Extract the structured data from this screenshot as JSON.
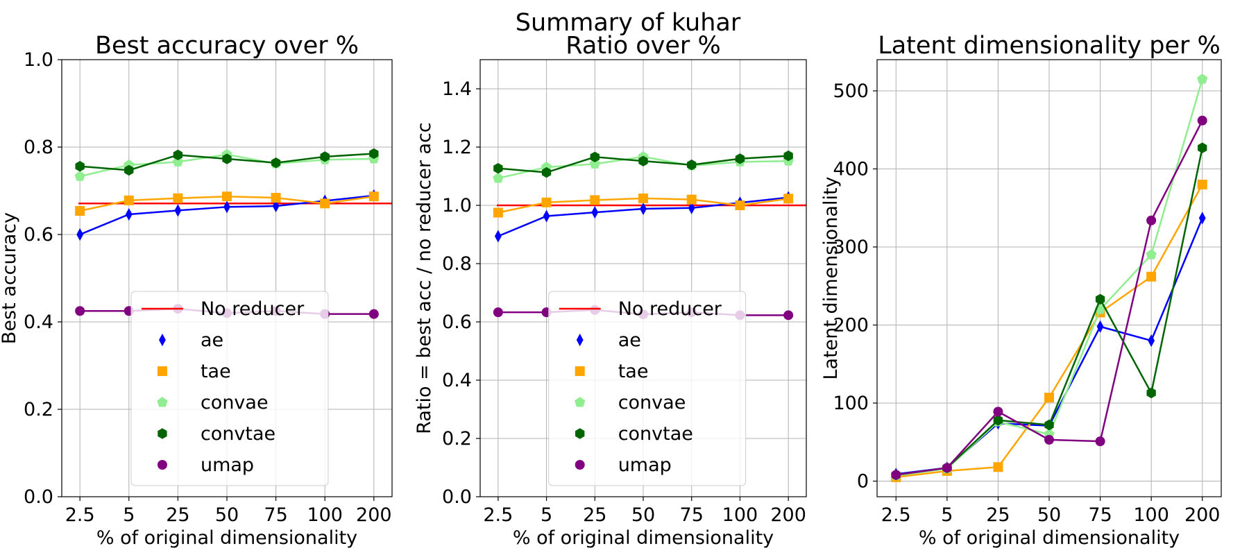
{
  "suptitle": "Summary of kuhar",
  "colors": {
    "No reducer": "#ff0000",
    "ae": "#0000ff",
    "tae": "#ffa500",
    "convae": "#90ee90",
    "convtae": "#006400",
    "umap": "#800080"
  },
  "chart_data": [
    {
      "type": "line",
      "title": "Best accuracy over %",
      "xlabel": "% of original dimensionality",
      "ylabel": "Best accuracy",
      "categories": [
        "2.5",
        "5",
        "25",
        "50",
        "75",
        "100",
        "200"
      ],
      "ylim": [
        0,
        1.0
      ],
      "yticks": [
        0.0,
        0.2,
        0.4,
        0.6,
        0.8,
        1.0
      ],
      "ytick_labels": [
        "0.0",
        "0.2",
        "0.4",
        "0.6",
        "0.8",
        "1.0"
      ],
      "grid": true,
      "legend": "lower-center",
      "baseline": {
        "name": "No reducer",
        "value": 0.671
      },
      "series": [
        {
          "name": "ae",
          "marker": "diamond",
          "values": [
            0.6,
            0.646,
            0.655,
            0.663,
            0.665,
            0.677,
            0.689
          ]
        },
        {
          "name": "tae",
          "marker": "square",
          "values": [
            0.654,
            0.678,
            0.683,
            0.687,
            0.684,
            0.671,
            0.687
          ]
        },
        {
          "name": "convae",
          "marker": "pentagon",
          "values": [
            0.733,
            0.759,
            0.766,
            0.783,
            0.762,
            0.771,
            0.773
          ]
        },
        {
          "name": "convtae",
          "marker": "hexagon",
          "values": [
            0.756,
            0.747,
            0.782,
            0.773,
            0.764,
            0.778,
            0.785
          ]
        },
        {
          "name": "umap",
          "marker": "circle",
          "values": [
            0.425,
            0.425,
            0.43,
            0.42,
            0.425,
            0.418,
            0.418
          ]
        }
      ]
    },
    {
      "type": "line",
      "title": "Ratio over %",
      "xlabel": "% of original dimensionality",
      "ylabel": "Ratio = best acc / no reducer acc",
      "categories": [
        "2.5",
        "5",
        "25",
        "50",
        "75",
        "100",
        "200"
      ],
      "ylim": [
        0,
        1.5
      ],
      "yticks": [
        0.0,
        0.2,
        0.4,
        0.6,
        0.8,
        1.0,
        1.2,
        1.4
      ],
      "ytick_labels": [
        "0.0",
        "0.2",
        "0.4",
        "0.6",
        "0.8",
        "1.0",
        "1.2",
        "1.4"
      ],
      "grid": true,
      "legend": "lower-center",
      "baseline": {
        "name": "No reducer",
        "value": 1.0
      },
      "series": [
        {
          "name": "ae",
          "marker": "diamond",
          "values": [
            0.894,
            0.963,
            0.976,
            0.988,
            0.991,
            1.009,
            1.027
          ]
        },
        {
          "name": "tae",
          "marker": "square",
          "values": [
            0.975,
            1.01,
            1.018,
            1.024,
            1.02,
            1.0,
            1.023
          ]
        },
        {
          "name": "convae",
          "marker": "pentagon",
          "values": [
            1.093,
            1.131,
            1.142,
            1.167,
            1.136,
            1.149,
            1.152
          ]
        },
        {
          "name": "convtae",
          "marker": "hexagon",
          "values": [
            1.127,
            1.113,
            1.166,
            1.152,
            1.139,
            1.16,
            1.17
          ]
        },
        {
          "name": "umap",
          "marker": "circle",
          "values": [
            0.633,
            0.633,
            0.641,
            0.626,
            0.633,
            0.623,
            0.623
          ]
        }
      ]
    },
    {
      "type": "line",
      "title": "Latent dimensionality per %",
      "xlabel": "% of original dimensionality",
      "ylabel": "Latent dimensionality",
      "categories": [
        "2.5",
        "5",
        "25",
        "50",
        "75",
        "100",
        "200"
      ],
      "ylim": [
        -20,
        540
      ],
      "yticks": [
        0,
        100,
        200,
        300,
        400,
        500
      ],
      "ytick_labels": [
        "0",
        "100",
        "200",
        "300",
        "400",
        "500"
      ],
      "grid": true,
      "legend": "none",
      "series": [
        {
          "name": "ae",
          "marker": "diamond",
          "values": [
            9,
            17,
            74,
            71,
            198,
            180,
            337
          ]
        },
        {
          "name": "tae",
          "marker": "square",
          "values": [
            5,
            13,
            18,
            107,
            216,
            262,
            380
          ]
        },
        {
          "name": "convae",
          "marker": "pentagon",
          "values": [
            7,
            16,
            76,
            60,
            220,
            290,
            515
          ]
        },
        {
          "name": "convtae",
          "marker": "hexagon",
          "values": [
            8,
            17,
            78,
            72,
            233,
            113,
            427
          ]
        },
        {
          "name": "umap",
          "marker": "circle",
          "values": [
            8,
            17,
            89,
            53,
            51,
            334,
            462
          ]
        }
      ]
    }
  ]
}
